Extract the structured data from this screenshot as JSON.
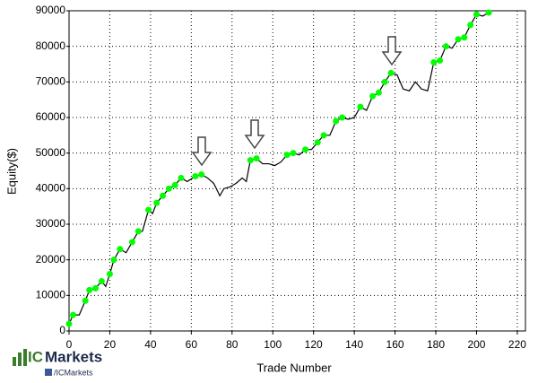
{
  "chart_data": {
    "type": "line",
    "xlabel": "Trade Number",
    "ylabel": "Equity($)",
    "x": [
      0,
      2,
      5,
      8,
      10,
      13,
      16,
      18,
      20,
      22,
      25,
      28,
      31,
      34,
      36,
      39,
      41,
      43,
      46,
      49,
      52,
      55,
      58,
      62,
      65,
      68,
      71,
      74,
      76,
      79,
      82,
      85,
      87,
      89,
      92,
      95,
      98,
      101,
      104,
      107,
      110,
      113,
      116,
      119,
      122,
      125,
      128,
      131,
      134,
      137,
      140,
      143,
      146,
      149,
      152,
      155,
      158,
      161,
      164,
      167,
      170,
      173,
      176,
      179,
      182,
      185,
      188,
      191,
      194,
      197,
      200,
      203,
      206
    ],
    "series": [
      {
        "color": "#000000",
        "line": true,
        "marker": null,
        "values": [
          2000,
          4500,
          4500,
          8500,
          11500,
          12000,
          14000,
          12500,
          16000,
          20000,
          23000,
          22000,
          25000,
          28000,
          28000,
          34000,
          33000,
          36000,
          38000,
          40000,
          41000,
          43000,
          42000,
          43500,
          44000,
          43000,
          41500,
          38000,
          40000,
          40500,
          41500,
          43000,
          42000,
          48000,
          48500,
          47000,
          47000,
          46500,
          47500,
          49500,
          50000,
          49500,
          51000,
          51000,
          53000,
          55000,
          55000,
          59000,
          60000,
          59500,
          60000,
          63000,
          62000,
          66000,
          67000,
          70000,
          72500,
          72000,
          68000,
          67500,
          70000,
          68000,
          67500,
          75500,
          76000,
          80000,
          79500,
          82000,
          82500,
          86000,
          89000,
          88500,
          89500
        ]
      },
      {
        "color": "#00ff00",
        "line": false,
        "marker": "circle",
        "values": [
          2000,
          4500,
          null,
          8500,
          11500,
          12000,
          14000,
          null,
          16000,
          20000,
          23000,
          null,
          25000,
          28000,
          null,
          34000,
          null,
          36000,
          38000,
          40000,
          41000,
          43000,
          null,
          43500,
          44000,
          null,
          null,
          null,
          null,
          null,
          null,
          null,
          null,
          48000,
          48500,
          null,
          null,
          null,
          null,
          49500,
          50000,
          null,
          51000,
          null,
          53000,
          55000,
          null,
          59000,
          60000,
          null,
          null,
          63000,
          null,
          66000,
          67000,
          70000,
          72500,
          null,
          null,
          null,
          null,
          null,
          null,
          75500,
          76000,
          80000,
          null,
          82000,
          82500,
          86000,
          89000,
          null,
          89500
        ]
      }
    ],
    "xlim": [
      0,
      224
    ],
    "xticks": [
      0,
      20,
      40,
      60,
      80,
      100,
      120,
      140,
      160,
      180,
      200,
      220
    ],
    "ylim": [
      0,
      90000
    ],
    "yticks": [
      0,
      10000,
      20000,
      30000,
      40000,
      50000,
      60000,
      70000,
      80000,
      90000
    ],
    "grid": true
  },
  "logo": {
    "prefix": "IC",
    "brand": "Markets",
    "social": "/ICMarkets"
  }
}
